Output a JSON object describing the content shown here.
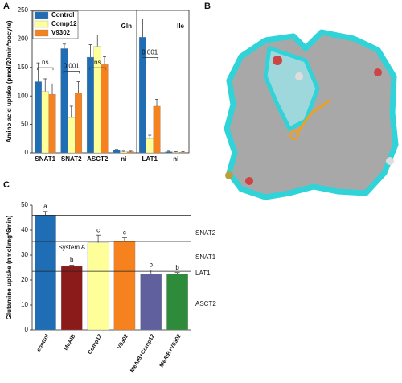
{
  "chart_data": [
    {
      "type": "grouped_bar",
      "panel": "A",
      "ylabel": "Amino acid uptake (pmol/20min*oocyte)",
      "categories": [
        "SNAT1",
        "SNAT2",
        "ASCT2",
        "ni",
        "LAT1",
        "ni"
      ],
      "series": [
        {
          "name": "Control",
          "color": "#1f6db4",
          "values": [
            125,
            183,
            168,
            5,
            203,
            2
          ],
          "errors": [
            33,
            8,
            22,
            1,
            32,
            1
          ]
        },
        {
          "name": "Comp12",
          "color": "#ffff99",
          "values": [
            108,
            62,
            187,
            2,
            25,
            1
          ],
          "errors": [
            22,
            20,
            20,
            1,
            6,
            1
          ]
        },
        {
          "name": "V9302",
          "color": "#f5821f",
          "values": [
            103,
            105,
            155,
            2,
            82,
            1
          ],
          "errors": [
            18,
            20,
            14,
            1,
            12,
            1
          ]
        }
      ],
      "ylim": [
        0,
        250
      ],
      "yticks": [
        0,
        50,
        100,
        150,
        200,
        250
      ],
      "legend": "upper left",
      "groups": [
        {
          "label": "Gln",
          "span": [
            0,
            3
          ]
        },
        {
          "label": "Ile",
          "span": [
            4,
            5
          ]
        }
      ],
      "annotations": [
        {
          "text": "ns",
          "category": 0,
          "y": 158
        },
        {
          "text": "0.001",
          "category": 1,
          "y": 152
        },
        {
          "text": "ns",
          "category": 2,
          "y": 158
        },
        {
          "text": "0.001",
          "category": 4,
          "y": 176
        }
      ]
    },
    {
      "type": "bar",
      "panel": "C",
      "ylabel": "Glutamine uptake (nmol/mg*6min)",
      "categories": [
        "control",
        "MeAIB",
        "Comp12",
        "V9302",
        "MeAIB+Comp12",
        "MeAIB+V9302"
      ],
      "values": [
        46,
        25.5,
        35,
        35.5,
        22.5,
        22.5
      ],
      "errors": [
        1.5,
        0.5,
        3,
        1.5,
        1.5,
        0.5
      ],
      "colors": [
        "#1f6db4",
        "#8b1a1a",
        "#ffff99",
        "#f5821f",
        "#60609f",
        "#2e8b3a"
      ],
      "letters": [
        "a",
        "b",
        "c",
        "c",
        "b",
        "b"
      ],
      "ylim": [
        0,
        50
      ],
      "yticks": [
        0,
        10,
        20,
        30,
        40,
        50
      ],
      "hlines": [
        46,
        35.5,
        23.5
      ],
      "region_labels": [
        {
          "text": "SNAT2",
          "y": 38.7
        },
        {
          "text": "SNAT1",
          "y": 29
        },
        {
          "text": "LAT1",
          "y": 22.6
        },
        {
          "text": "ASCT2",
          "y": 10.3
        }
      ],
      "annotations": [
        {
          "text": "System A",
          "category": 1,
          "y": 33
        }
      ]
    }
  ],
  "panel_b": {
    "label": "B"
  }
}
